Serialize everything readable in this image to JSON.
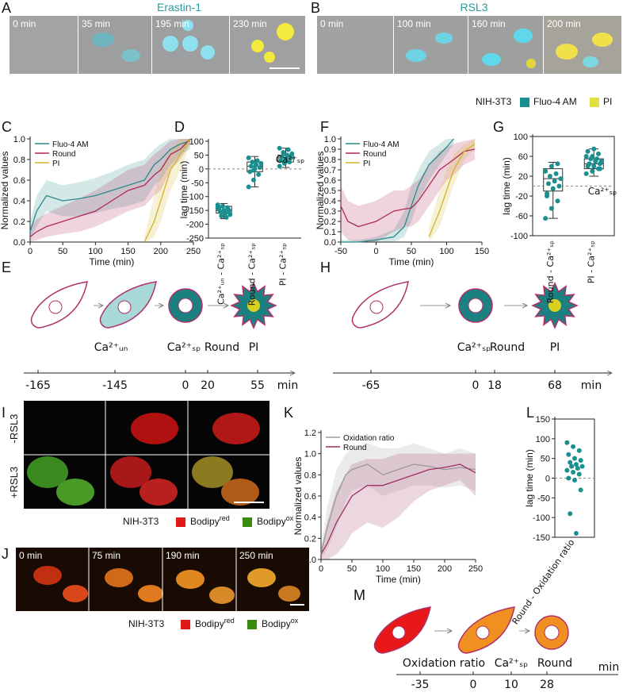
{
  "figure": {
    "A": {
      "label": "A",
      "title": "Erastin-1",
      "times": [
        "0 min",
        "35 min",
        "195 min",
        "230 min"
      ]
    },
    "B": {
      "label": "B",
      "title": "RSL3",
      "times": [
        "0 min",
        "100 min",
        "160 min",
        "200 min"
      ],
      "legend": [
        "NIH-3T3",
        "Fluo-4 AM",
        "PI"
      ]
    },
    "E": {
      "label": "E",
      "stages": [
        "Ca²⁺ᵤₙ",
        "Ca²⁺ₛₚ",
        "Round",
        "PI"
      ],
      "ticks": [
        -165,
        -145,
        0,
        20,
        55
      ],
      "unit": "min"
    },
    "H": {
      "label": "H",
      "stages": [
        "Ca²⁺ₛₚ",
        "Round",
        "PI"
      ],
      "ticks": [
        -65,
        0,
        18,
        68
      ],
      "unit": "min"
    },
    "I": {
      "label": "I",
      "rows": [
        "-RSL3",
        "+RSL3"
      ],
      "legend": {
        "cell": "NIH-3T3",
        "items": [
          {
            "name": "Bodipy",
            "sup": "red"
          },
          {
            "name": "Bodipy",
            "sup": "ox"
          }
        ]
      }
    },
    "J": {
      "label": "J",
      "times": [
        "0 min",
        "75 min",
        "190 min",
        "250 min"
      ],
      "legend": {
        "cell": "NIH-3T3",
        "items": [
          {
            "name": "Bodipy",
            "sup": "red"
          },
          {
            "name": "Bodipy",
            "sup": "ox"
          }
        ]
      }
    },
    "M": {
      "label": "M",
      "stages": [
        "Oxidation ratio",
        "Ca²⁺ₛₚ",
        "Round"
      ],
      "ticks": [
        -35,
        0,
        10,
        28
      ],
      "unit": "min"
    }
  },
  "chart_data": [
    {
      "panel": "C",
      "type": "line",
      "xlabel": "Time (min)",
      "ylabel": "Normalized values",
      "legend": "top-left",
      "xlim": [
        0,
        250
      ],
      "xticks": [
        0,
        50,
        100,
        150,
        200,
        250
      ],
      "ylim": [
        0,
        1
      ],
      "yticks": [
        {
          "value": 0,
          "label": "0.0"
        },
        0.2,
        0.4,
        0.6,
        0.8,
        {
          "value": 1,
          "label": "1.0"
        }
      ],
      "x": [
        0,
        10,
        25,
        50,
        75,
        100,
        125,
        150,
        175,
        190,
        200,
        215,
        230,
        245
      ],
      "series": [
        {
          "name": "Fluo-4 AM",
          "color": "#2a8a8a",
          "values": [
            0.1,
            0.3,
            0.45,
            0.4,
            0.42,
            0.45,
            0.5,
            0.55,
            0.6,
            0.75,
            0.8,
            0.9,
            0.95,
            0.98
          ],
          "lower": [
            0.02,
            0.15,
            0.3,
            0.25,
            0.25,
            0.28,
            0.32,
            0.35,
            0.4,
            0.55,
            0.6,
            0.75,
            0.85,
            0.9
          ],
          "upper": [
            0.2,
            0.45,
            0.6,
            0.55,
            0.58,
            0.62,
            0.68,
            0.75,
            0.8,
            0.9,
            0.95,
            1.0,
            1.0,
            1.0
          ]
        },
        {
          "name": "Round",
          "color": "#b02a5a",
          "values": [
            0.05,
            0.1,
            0.15,
            0.2,
            0.25,
            0.3,
            0.4,
            0.5,
            0.55,
            0.65,
            0.7,
            0.85,
            0.9,
            1.0
          ],
          "lower": [
            0,
            0.02,
            0.05,
            0.08,
            0.1,
            0.15,
            0.22,
            0.3,
            0.35,
            0.45,
            0.5,
            0.7,
            0.8,
            0.95
          ],
          "upper": [
            0.15,
            0.22,
            0.28,
            0.35,
            0.42,
            0.5,
            0.6,
            0.7,
            0.75,
            0.85,
            0.9,
            0.98,
            1.0,
            1.0
          ]
        },
        {
          "name": "PI",
          "color": "#d4b42a",
          "values": [
            null,
            null,
            null,
            null,
            null,
            null,
            null,
            null,
            0,
            0.2,
            0.4,
            0.7,
            0.85,
            1.0
          ],
          "lower": [
            null,
            null,
            null,
            null,
            null,
            null,
            null,
            null,
            0,
            0.05,
            0.2,
            0.5,
            0.7,
            0.95
          ],
          "upper": [
            null,
            null,
            null,
            null,
            null,
            null,
            null,
            null,
            0.05,
            0.45,
            0.7,
            0.9,
            1.0,
            1.0
          ]
        }
      ]
    },
    {
      "panel": "D",
      "type": "box",
      "ylabel": "lag time (min)",
      "color": "#1a8f8f",
      "refline": 0,
      "annotation": "Ca²⁺ₛₚ",
      "ylim": [
        -250,
        100
      ],
      "yticks": [
        -250,
        -200,
        -150,
        -100,
        -50,
        0,
        50,
        100
      ],
      "categories": [
        "Ca²⁺ᵤₙ - Ca²⁺ₛₚ",
        "Round - Ca²⁺ₛₚ",
        "PI - Ca²⁺ₛₚ"
      ],
      "points": [
        [
          -130,
          -135,
          -140,
          -145,
          -150,
          -150,
          -155,
          -160,
          -165,
          -170,
          -175,
          -140
        ],
        [
          -65,
          -40,
          -20,
          -10,
          0,
          5,
          10,
          15,
          20,
          25,
          30,
          40,
          -5
        ],
        [
          10,
          20,
          25,
          30,
          35,
          40,
          45,
          50,
          55,
          60,
          70,
          75
        ]
      ],
      "boxes": [
        {
          "min": -180,
          "q1": -160,
          "median": -150,
          "q3": -135,
          "max": -125
        },
        {
          "min": -65,
          "q1": -10,
          "median": 10,
          "q3": 25,
          "max": 45
        },
        {
          "min": 5,
          "q1": 25,
          "median": 40,
          "q3": 50,
          "max": 75
        }
      ]
    },
    {
      "panel": "F",
      "type": "line",
      "xlabel": "Time (min)",
      "ylabel": "Normalized values",
      "legend": "top-left",
      "xlim": [
        -50,
        150
      ],
      "xticks": [
        -50,
        0,
        50,
        100,
        150
      ],
      "ylim": [
        0,
        1
      ],
      "yticks": [
        {
          "value": 0,
          "label": "0.0"
        },
        0.1,
        0.2,
        0.3,
        0.4,
        0.5,
        0.6,
        0.7,
        0.8,
        0.9,
        {
          "value": 1,
          "label": "1.0"
        }
      ],
      "x": [
        -50,
        -40,
        -25,
        0,
        25,
        40,
        50,
        60,
        75,
        90,
        100,
        110,
        125,
        140
      ],
      "series": [
        {
          "name": "Fluo-4 AM",
          "color": "#2a8a8a",
          "values": [
            0,
            0,
            0,
            0.02,
            0.05,
            0.15,
            0.35,
            0.55,
            0.75,
            0.85,
            0.92,
            1.0,
            null,
            null
          ],
          "lower": [
            0,
            0,
            0,
            0,
            0,
            0.05,
            0.2,
            0.4,
            0.6,
            0.75,
            0.85,
            0.95,
            null,
            null
          ],
          "upper": [
            0.02,
            0.02,
            0.02,
            0.05,
            0.12,
            0.3,
            0.55,
            0.7,
            0.88,
            0.95,
            1.0,
            1.0,
            null,
            null
          ]
        },
        {
          "name": "Round",
          "color": "#b02a5a",
          "values": [
            0.35,
            0.2,
            0.15,
            0.2,
            0.3,
            0.32,
            0.33,
            0.4,
            0.55,
            0.7,
            0.75,
            0.8,
            0.88,
            0.9
          ],
          "lower": [
            0.1,
            0.02,
            0,
            0,
            0.1,
            0.15,
            0.15,
            0.2,
            0.35,
            0.5,
            0.6,
            0.65,
            0.75,
            0.8
          ],
          "upper": [
            0.55,
            0.4,
            0.35,
            0.4,
            0.5,
            0.5,
            0.55,
            0.6,
            0.75,
            0.88,
            0.92,
            0.95,
            0.98,
            1.0
          ]
        },
        {
          "name": "PI",
          "color": "#d4b42a",
          "values": [
            null,
            null,
            null,
            null,
            null,
            null,
            null,
            null,
            0.05,
            0.3,
            0.5,
            0.7,
            0.88,
            0.95
          ],
          "lower": [
            null,
            null,
            null,
            null,
            null,
            null,
            null,
            null,
            0,
            0.15,
            0.35,
            0.55,
            0.8,
            0.9
          ],
          "upper": [
            null,
            null,
            null,
            null,
            null,
            null,
            null,
            null,
            0.15,
            0.5,
            0.7,
            0.85,
            0.95,
            1.0
          ]
        }
      ]
    },
    {
      "panel": "G",
      "type": "box",
      "ylabel": "lag time (min)",
      "color": "#1a8f8f",
      "refline": 0,
      "annotation": "Ca²⁺ₛₚ",
      "frame": true,
      "ylim": [
        -100,
        100
      ],
      "yticks": [
        -100,
        -60,
        -20,
        20,
        60,
        100
      ],
      "categories": [
        "Round - Ca²⁺ₛₚ",
        "PI - Ca²⁺ₛₚ"
      ],
      "points": [
        [
          -65,
          -45,
          -30,
          -15,
          -5,
          0,
          5,
          10,
          15,
          20,
          25,
          30,
          40,
          45,
          -20
        ],
        [
          25,
          30,
          35,
          40,
          40,
          45,
          45,
          50,
          50,
          55,
          55,
          60,
          60,
          65,
          70,
          75,
          35,
          45
        ]
      ],
      "boxes": [
        {
          "min": -65,
          "q1": -10,
          "median": 15,
          "q3": 35,
          "max": 48
        },
        {
          "min": 20,
          "q1": 35,
          "median": 45,
          "q3": 55,
          "max": 75
        }
      ]
    },
    {
      "panel": "K",
      "type": "line",
      "xlabel": "Time (min)",
      "ylabel": "Normalized values",
      "legend": "top-left",
      "xlim": [
        0,
        250
      ],
      "xticks": [
        0,
        50,
        100,
        150,
        200,
        250
      ],
      "ylim": [
        0,
        1.2
      ],
      "yticks": [
        {
          "value": 0,
          "label": "0.0"
        },
        0.2,
        0.4,
        0.6,
        0.8,
        {
          "value": 1,
          "label": "1.0"
        },
        1.2
      ],
      "x": [
        0,
        10,
        25,
        40,
        50,
        75,
        100,
        125,
        150,
        175,
        200,
        225,
        250
      ],
      "series": [
        {
          "name": "Oxidation ratio",
          "color": "#9a9a9a",
          "values": [
            0.05,
            0.3,
            0.6,
            0.8,
            0.85,
            0.9,
            0.8,
            0.85,
            0.9,
            0.88,
            0.85,
            0.87,
            0.85
          ],
          "lower": [
            0,
            0.1,
            0.3,
            0.55,
            0.65,
            0.7,
            0.6,
            0.65,
            0.7,
            0.7,
            0.68,
            0.7,
            0.65
          ],
          "upper": [
            0.1,
            0.5,
            0.85,
            1.0,
            1.05,
            1.1,
            1.05,
            1.05,
            1.1,
            1.05,
            1.0,
            1.05,
            1.0
          ]
        },
        {
          "name": "Round",
          "color": "#a03060",
          "values": [
            0.05,
            0.15,
            0.35,
            0.5,
            0.6,
            0.7,
            0.7,
            0.75,
            0.8,
            0.85,
            0.87,
            0.9,
            0.82
          ],
          "lower": [
            0,
            0,
            0.05,
            0.15,
            0.25,
            0.35,
            0.3,
            0.4,
            0.55,
            0.65,
            0.7,
            0.75,
            0.6
          ],
          "upper": [
            0.1,
            0.35,
            0.65,
            0.8,
            0.9,
            0.95,
            0.95,
            1.0,
            1.0,
            1.0,
            1.0,
            1.0,
            1.0
          ]
        }
      ]
    },
    {
      "panel": "L",
      "type": "box",
      "ylabel": "lag time (min)",
      "color": "#1a8f8f",
      "refline": 0,
      "frame": true,
      "ylim": [
        -150,
        150
      ],
      "yticks": [
        -150,
        -100,
        -50,
        0,
        50,
        100,
        150
      ],
      "categories": [
        "Round - Oxidation ratio"
      ],
      "points": [
        [
          90,
          80,
          70,
          60,
          50,
          45,
          40,
          35,
          30,
          30,
          25,
          20,
          15,
          10,
          0,
          -5,
          -30,
          -90,
          -140
        ]
      ]
    }
  ]
}
